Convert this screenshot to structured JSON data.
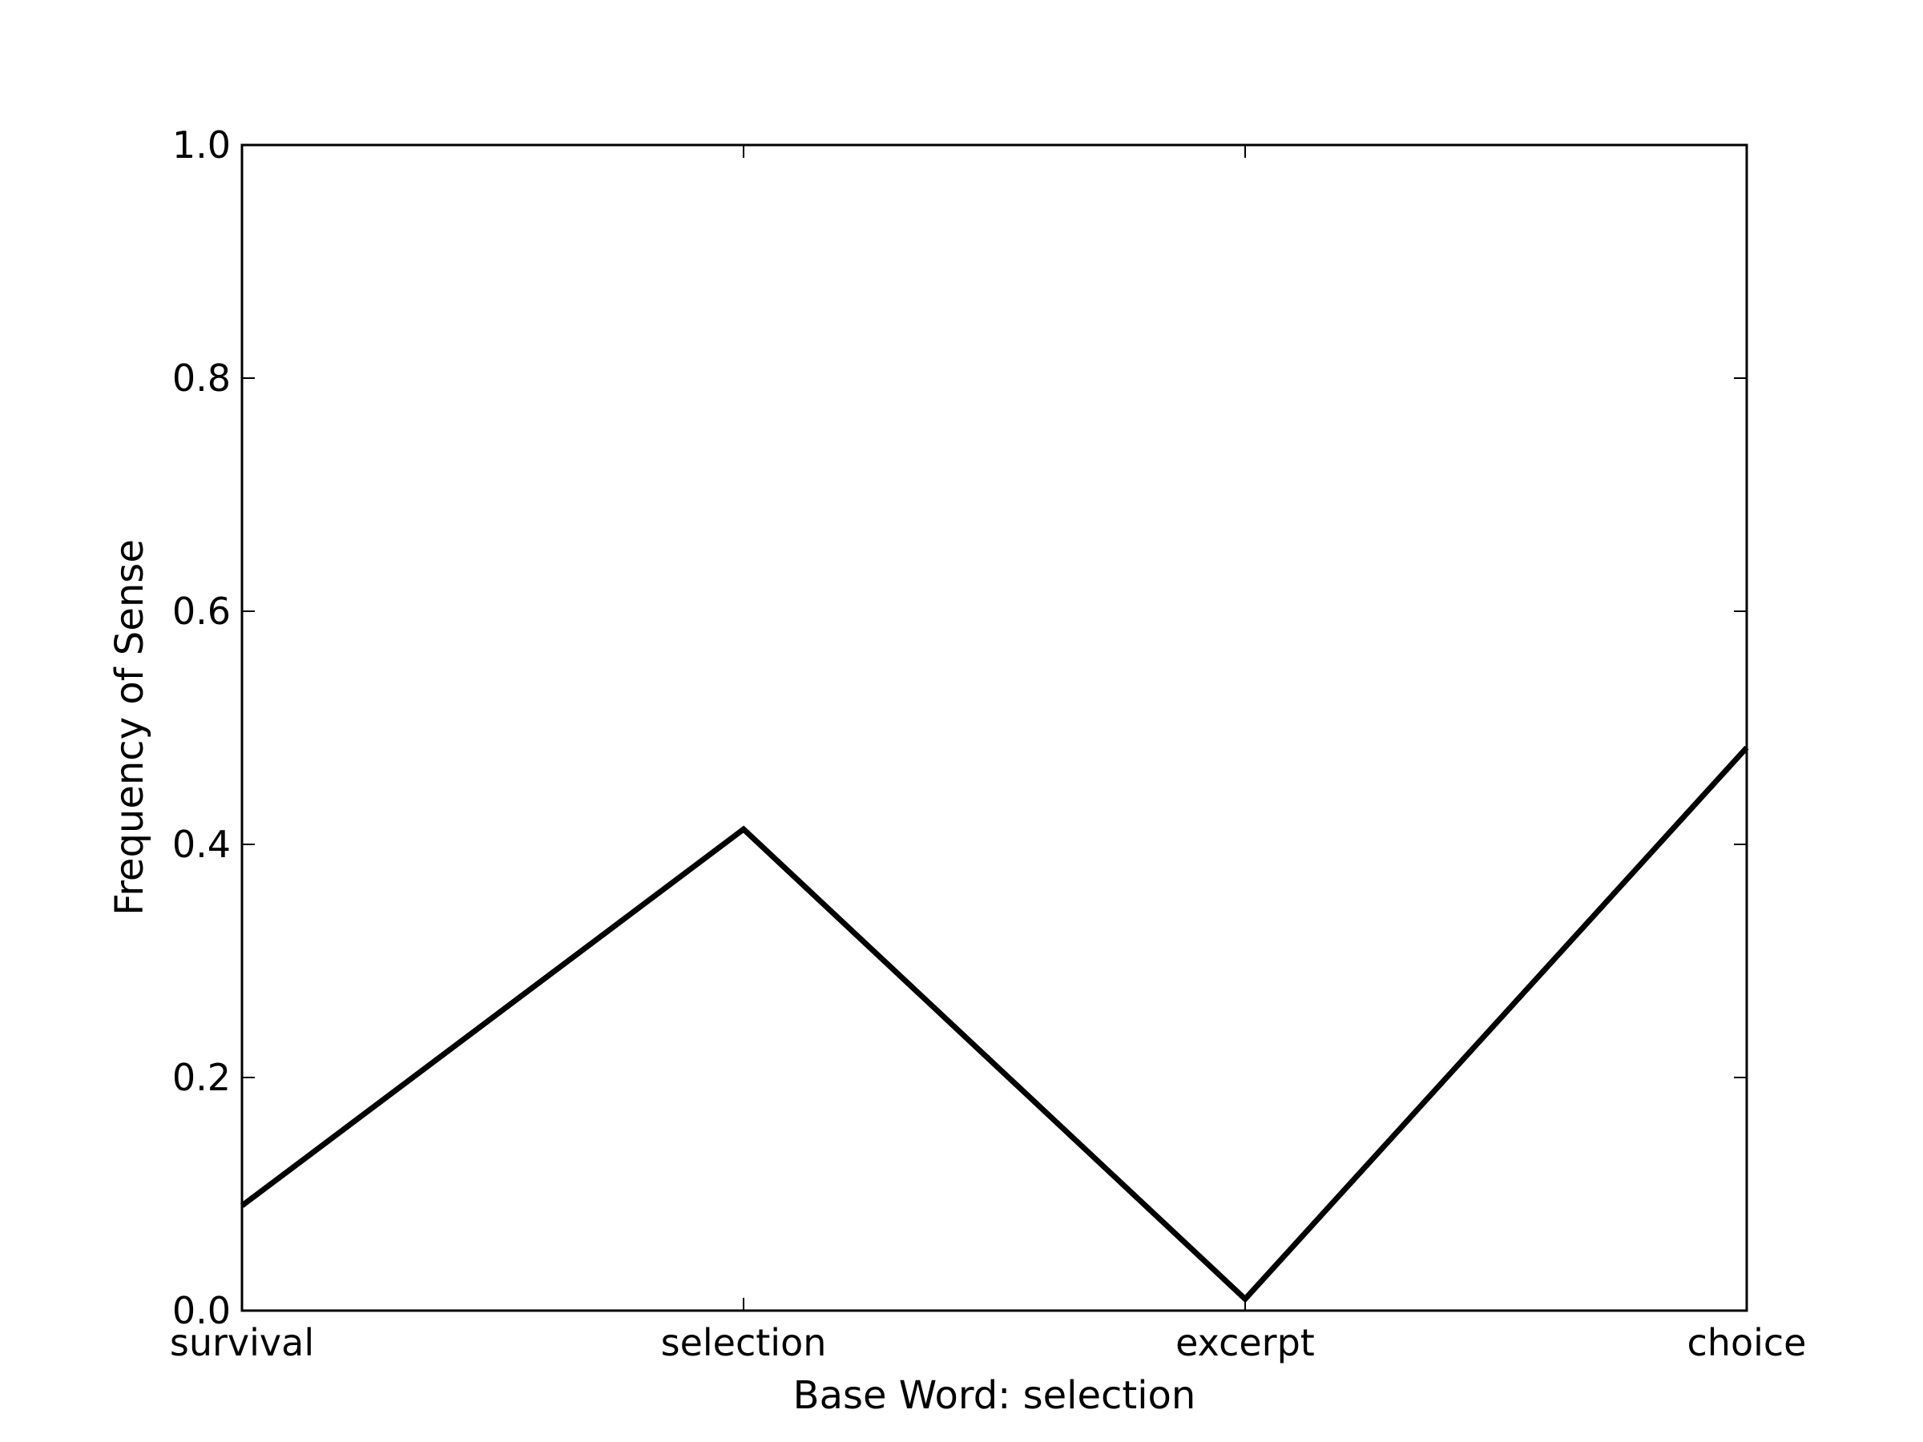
{
  "chart_data": {
    "type": "line",
    "categories": [
      "survival",
      "selection",
      "excerpt",
      "choice"
    ],
    "values": [
      0.09,
      0.413,
      0.01,
      0.483
    ],
    "title": "",
    "xlabel": "Base Word: selection",
    "ylabel": "Frequency of Sense",
    "ylim": [
      0.0,
      1.0
    ],
    "yticks": [
      "0.0",
      "0.2",
      "0.4",
      "0.6",
      "0.8",
      "1.0"
    ],
    "grid": false,
    "legend": "none",
    "line_color": "#000000"
  }
}
